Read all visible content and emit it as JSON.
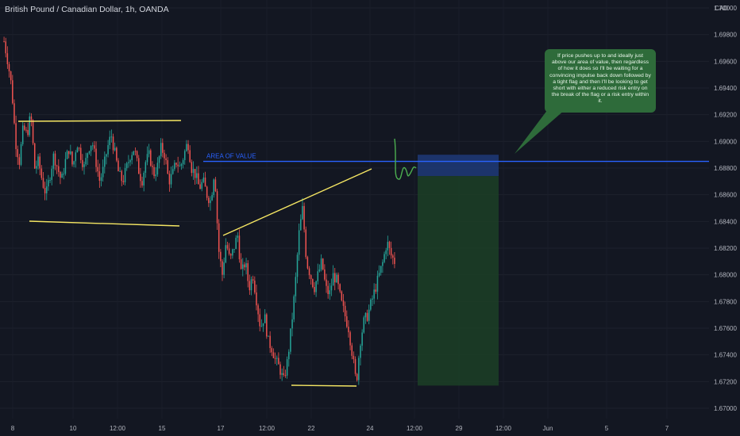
{
  "header": {
    "title": "British Pound / Canadian Dollar, 1h, OANDA"
  },
  "annotations": {
    "area_of_value": "AREA OF VALUE",
    "note": "If price pushes up to and ideally just above our area of value, then regardless of how it does so I'll be waiting for a convincing impulse back down followed by a tight flag and then I'll be looking to get short with either a reduced risk entry on the break of the flag or a risk entry within it."
  },
  "colors": {
    "background": "#131722",
    "up": "#26a69a",
    "down": "#ef5350",
    "trendline": "#f5e663",
    "area_line": "#2962ff",
    "stop_zone": "#1e3a78",
    "target_zone": "#1c3d26",
    "note_bg": "#2e6b3a"
  },
  "chart_data": {
    "type": "candlestick",
    "currency": "CAD",
    "ylim": [
      1.67,
      1.7
    ],
    "y_ticks": [
      "1.70000",
      "1.69800",
      "1.69600",
      "1.69400",
      "1.69200",
      "1.69000",
      "1.68800",
      "1.68600",
      "1.68400",
      "1.68200",
      "1.68000",
      "1.67800",
      "1.67600",
      "1.67400",
      "1.67200",
      "1.67000"
    ],
    "x_ticks": [
      "8",
      "10",
      "12:00",
      "15",
      "17",
      "12:00",
      "22",
      "24",
      "12:00",
      "29",
      "12:00",
      "Jun",
      "5",
      "7"
    ],
    "area_of_value_price": 1.6885,
    "stop_zone": [
      1.6874,
      1.689
    ],
    "target_zone": [
      1.6717,
      1.6874
    ],
    "path": [
      1.6975,
      1.696,
      1.694,
      1.69,
      1.6885,
      1.691,
      1.6905,
      1.692,
      1.688,
      1.6885,
      1.687,
      1.686,
      1.6875,
      1.689,
      1.688,
      1.687,
      1.6885,
      1.6895,
      1.688,
      1.69,
      1.689,
      1.688,
      1.6895,
      1.69,
      1.6885,
      1.687,
      1.688,
      1.6895,
      1.6905,
      1.689,
      1.6875,
      1.687,
      1.688,
      1.689,
      1.6895,
      1.688,
      1.687,
      1.6885,
      1.689,
      1.6875,
      1.688,
      1.6895,
      1.689,
      1.687,
      1.6875,
      1.6885,
      1.688,
      1.689,
      1.69,
      1.688,
      1.6875,
      1.6865,
      1.687,
      1.686,
      1.6855,
      1.688,
      1.682,
      1.68,
      1.6825,
      1.681,
      1.682,
      1.683,
      1.68,
      1.681,
      1.679,
      1.68,
      1.678,
      1.676,
      1.677,
      1.675,
      1.6745,
      1.6735,
      1.673,
      1.672,
      1.6735,
      1.676,
      1.679,
      1.683,
      1.685,
      1.681,
      1.68,
      1.679,
      1.68,
      1.681,
      1.679,
      1.6785,
      1.68,
      1.6795,
      1.678,
      1.677,
      1.676,
      1.674,
      1.6718,
      1.675,
      1.6765,
      1.677,
      1.678,
      1.679,
      1.68,
      1.681,
      1.6825,
      1.6815,
      1.681
    ]
  }
}
